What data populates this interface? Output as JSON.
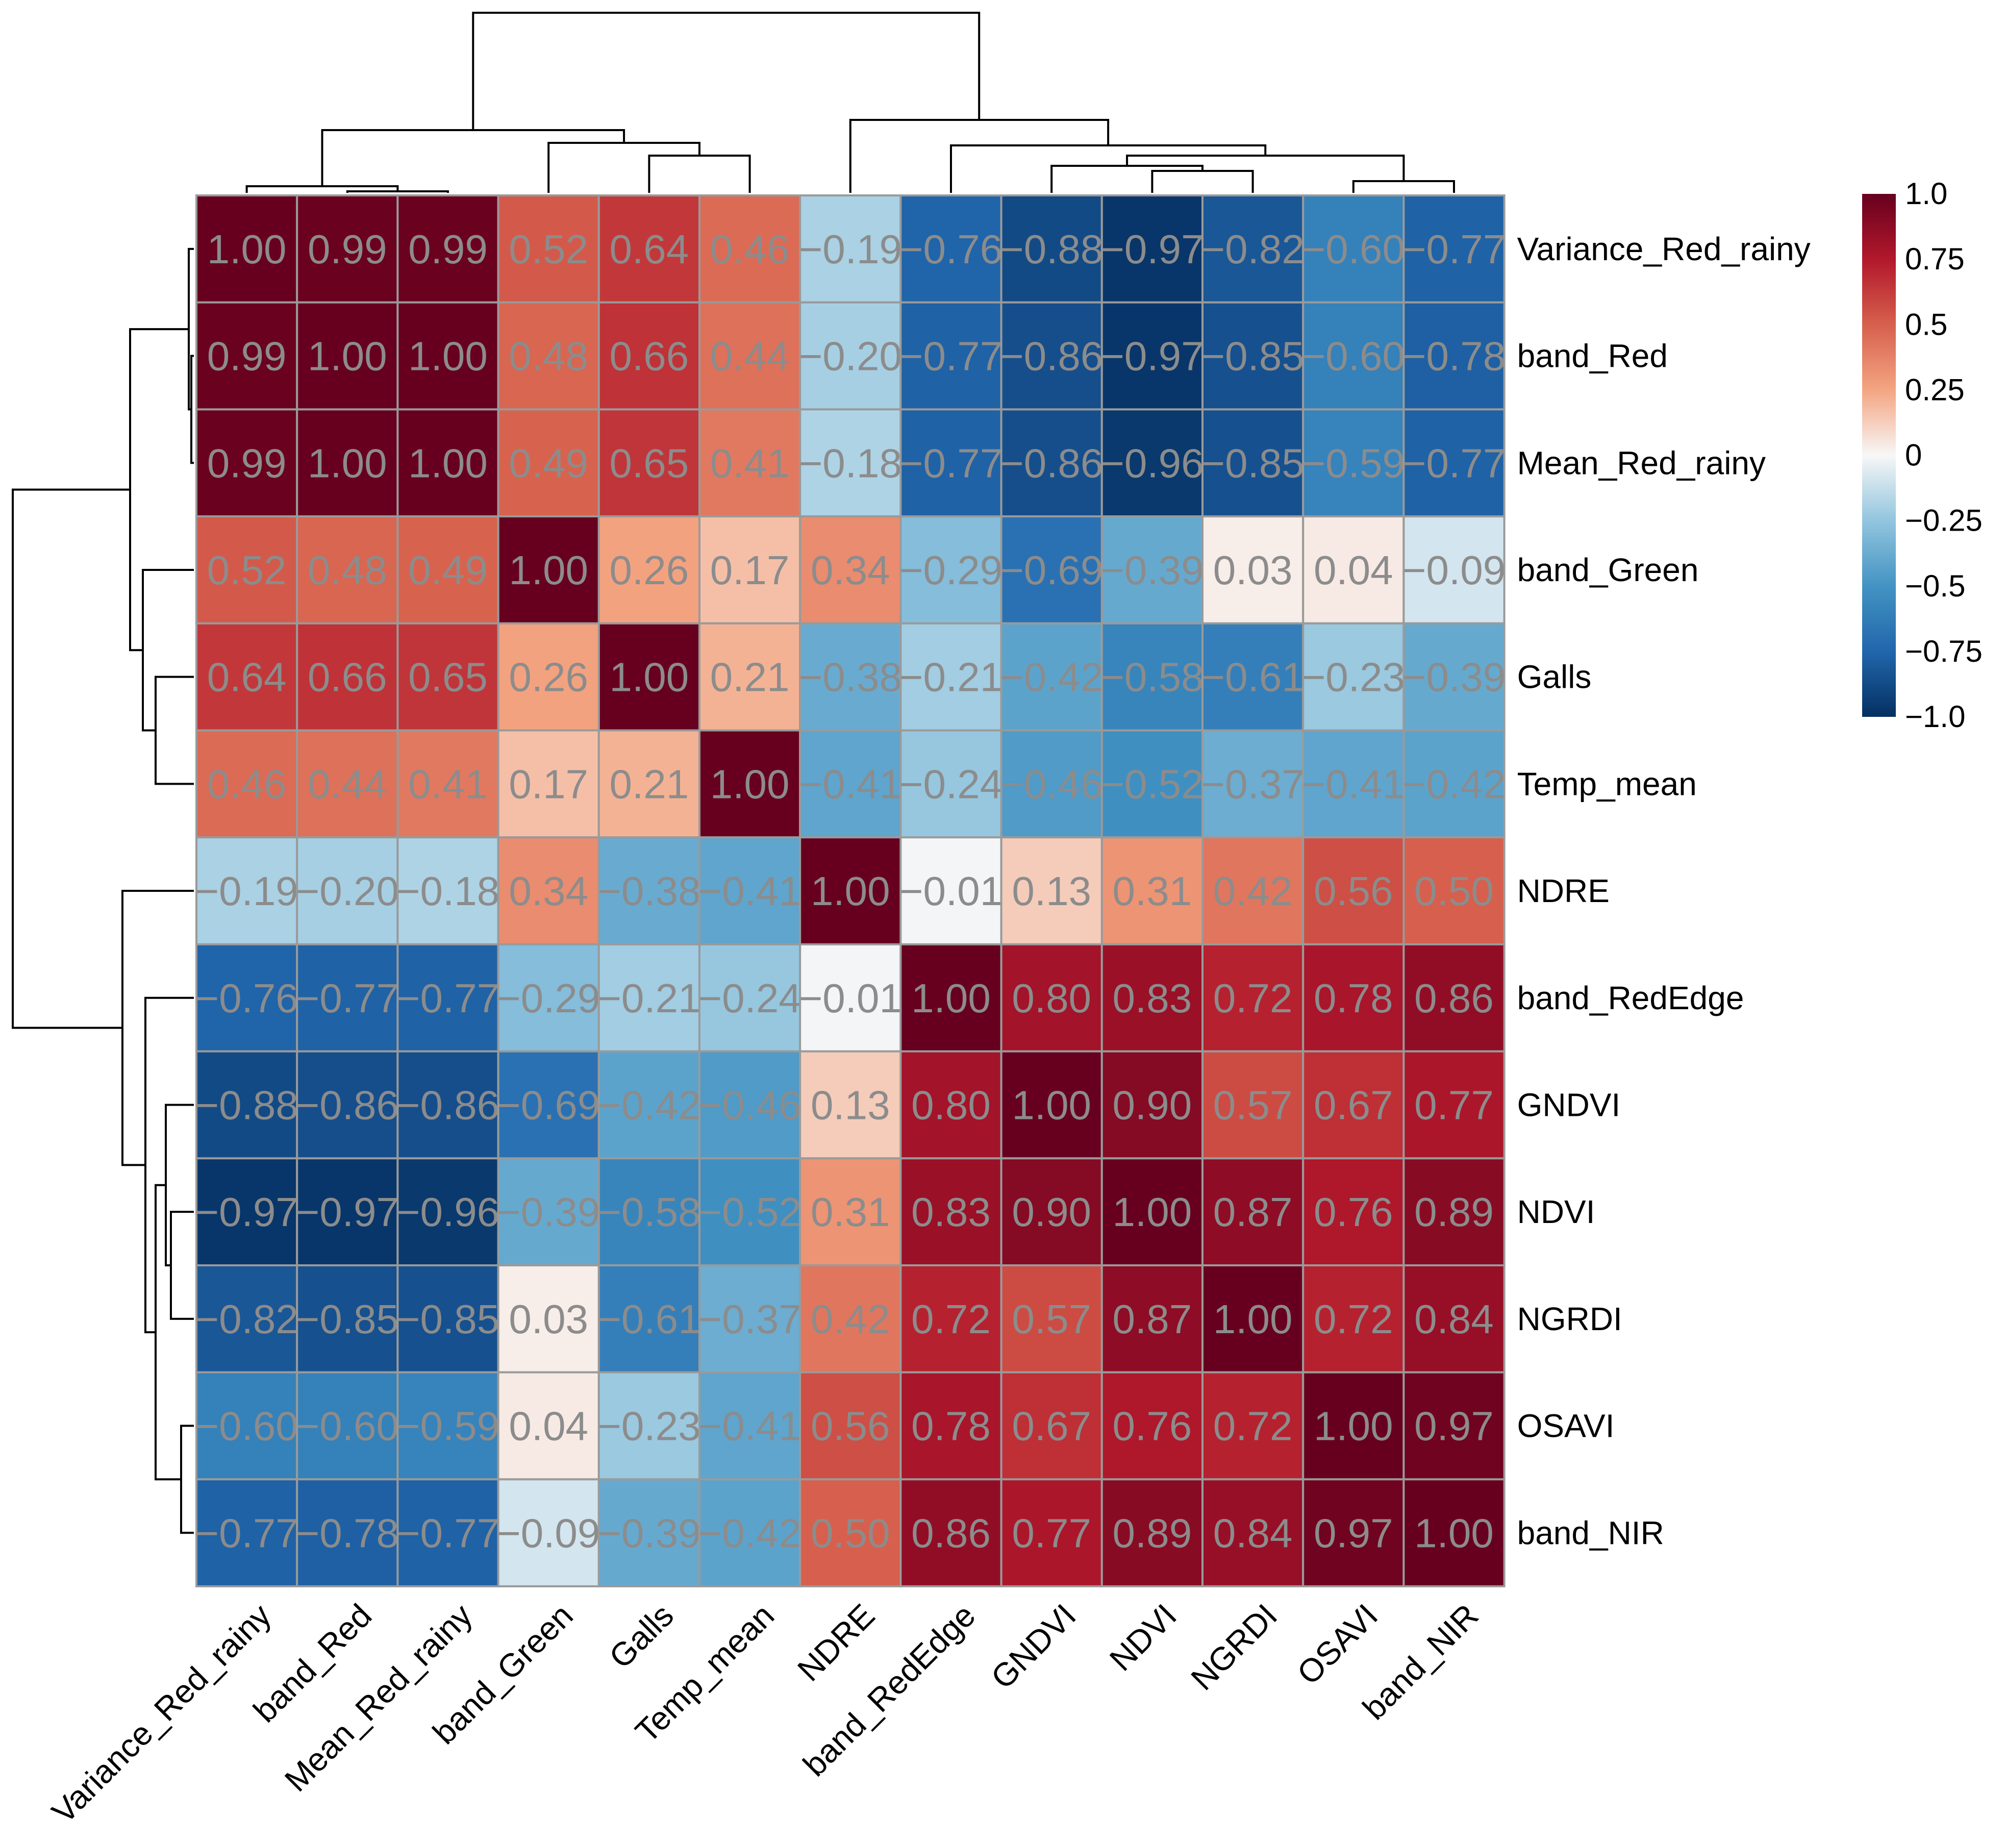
{
  "chart_data": {
    "type": "heatmap",
    "title": "",
    "variables": [
      "Variance_Red_rainy",
      "band_Red",
      "Mean_Red_rainy",
      "band_Green",
      "Galls",
      "Temp_mean",
      "NDRE",
      "band_RedEdge",
      "GNDVI",
      "NDVI",
      "NGRDI",
      "OSAVI",
      "band_NIR"
    ],
    "cell_labels": [
      [
        "1.00",
        "0.99",
        "0.99",
        "0.52",
        "0.64",
        "0.46",
        "−0.19",
        "−0.76",
        "−0.88",
        "−0.97",
        "−0.82",
        "−0.60",
        "−0.77"
      ],
      [
        "0.99",
        "1.00",
        "1.00",
        "0.48",
        "0.66",
        "0.44",
        "−0.20",
        "−0.77",
        "−0.86",
        "−0.97",
        "−0.85",
        "−0.60",
        "−0.78"
      ],
      [
        "0.99",
        "1.00",
        "1.00",
        "0.49",
        "0.65",
        "0.41",
        "−0.18",
        "−0.77",
        "−0.86",
        "−0.96",
        "−0.85",
        "−0.59",
        "−0.77"
      ],
      [
        "0.52",
        "0.48",
        "0.49",
        "1.00",
        "0.26",
        "0.17",
        "0.34",
        "−0.29",
        "−0.69",
        "−0.39",
        "0.03",
        "0.04",
        "−0.09"
      ],
      [
        "0.64",
        "0.66",
        "0.65",
        "0.26",
        "1.00",
        "0.21",
        "−0.38",
        "−0.21",
        "−0.42",
        "−0.58",
        "−0.61",
        "−0.23",
        "−0.39"
      ],
      [
        "0.46",
        "0.44",
        "0.41",
        "0.17",
        "0.21",
        "1.00",
        "−0.41",
        "−0.24",
        "−0.46",
        "−0.52",
        "−0.37",
        "−0.41",
        "−0.42"
      ],
      [
        "−0.19",
        "−0.20",
        "−0.18",
        "0.34",
        "−0.38",
        "−0.41",
        "1.00",
        "−0.01",
        "0.13",
        "0.31",
        "0.42",
        "0.56",
        "0.50"
      ],
      [
        "−0.76",
        "−0.77",
        "−0.77",
        "−0.29",
        "−0.21",
        "−0.24",
        "−0.01",
        "1.00",
        "0.80",
        "0.83",
        "0.72",
        "0.78",
        "0.86"
      ],
      [
        "−0.88",
        "−0.86",
        "−0.86",
        "−0.69",
        "−0.42",
        "−0.46",
        "0.13",
        "0.80",
        "1.00",
        "0.90",
        "0.57",
        "0.67",
        "0.77"
      ],
      [
        "−0.97",
        "−0.97",
        "−0.96",
        "−0.39",
        "−0.58",
        "−0.52",
        "0.31",
        "0.83",
        "0.90",
        "1.00",
        "0.87",
        "0.76",
        "0.89"
      ],
      [
        "−0.82",
        "−0.85",
        "−0.85",
        "0.03",
        "−0.61",
        "−0.37",
        "0.42",
        "0.72",
        "0.57",
        "0.87",
        "1.00",
        "0.72",
        "0.84"
      ],
      [
        "−0.60",
        "−0.60",
        "−0.59",
        "0.04",
        "−0.23",
        "−0.41",
        "0.56",
        "0.78",
        "0.67",
        "0.76",
        "0.72",
        "1.00",
        "0.97"
      ],
      [
        "−0.77",
        "−0.78",
        "−0.77",
        "−0.09",
        "−0.39",
        "−0.42",
        "0.50",
        "0.86",
        "0.77",
        "0.89",
        "0.84",
        "0.97",
        "1.00"
      ]
    ],
    "color_scale": {
      "min": -1.0,
      "max": 1.0,
      "low_color": "#053061",
      "mid_color": "#f7f7f7",
      "high_color": "#67001f",
      "ticks": [
        "1.0",
        "0.75",
        "0.5",
        "0.25",
        "0",
        "−0.25",
        "−0.5",
        "−0.75",
        "−1.0"
      ]
    },
    "legend_position": "right",
    "dendrograms": [
      "top",
      "left"
    ]
  }
}
